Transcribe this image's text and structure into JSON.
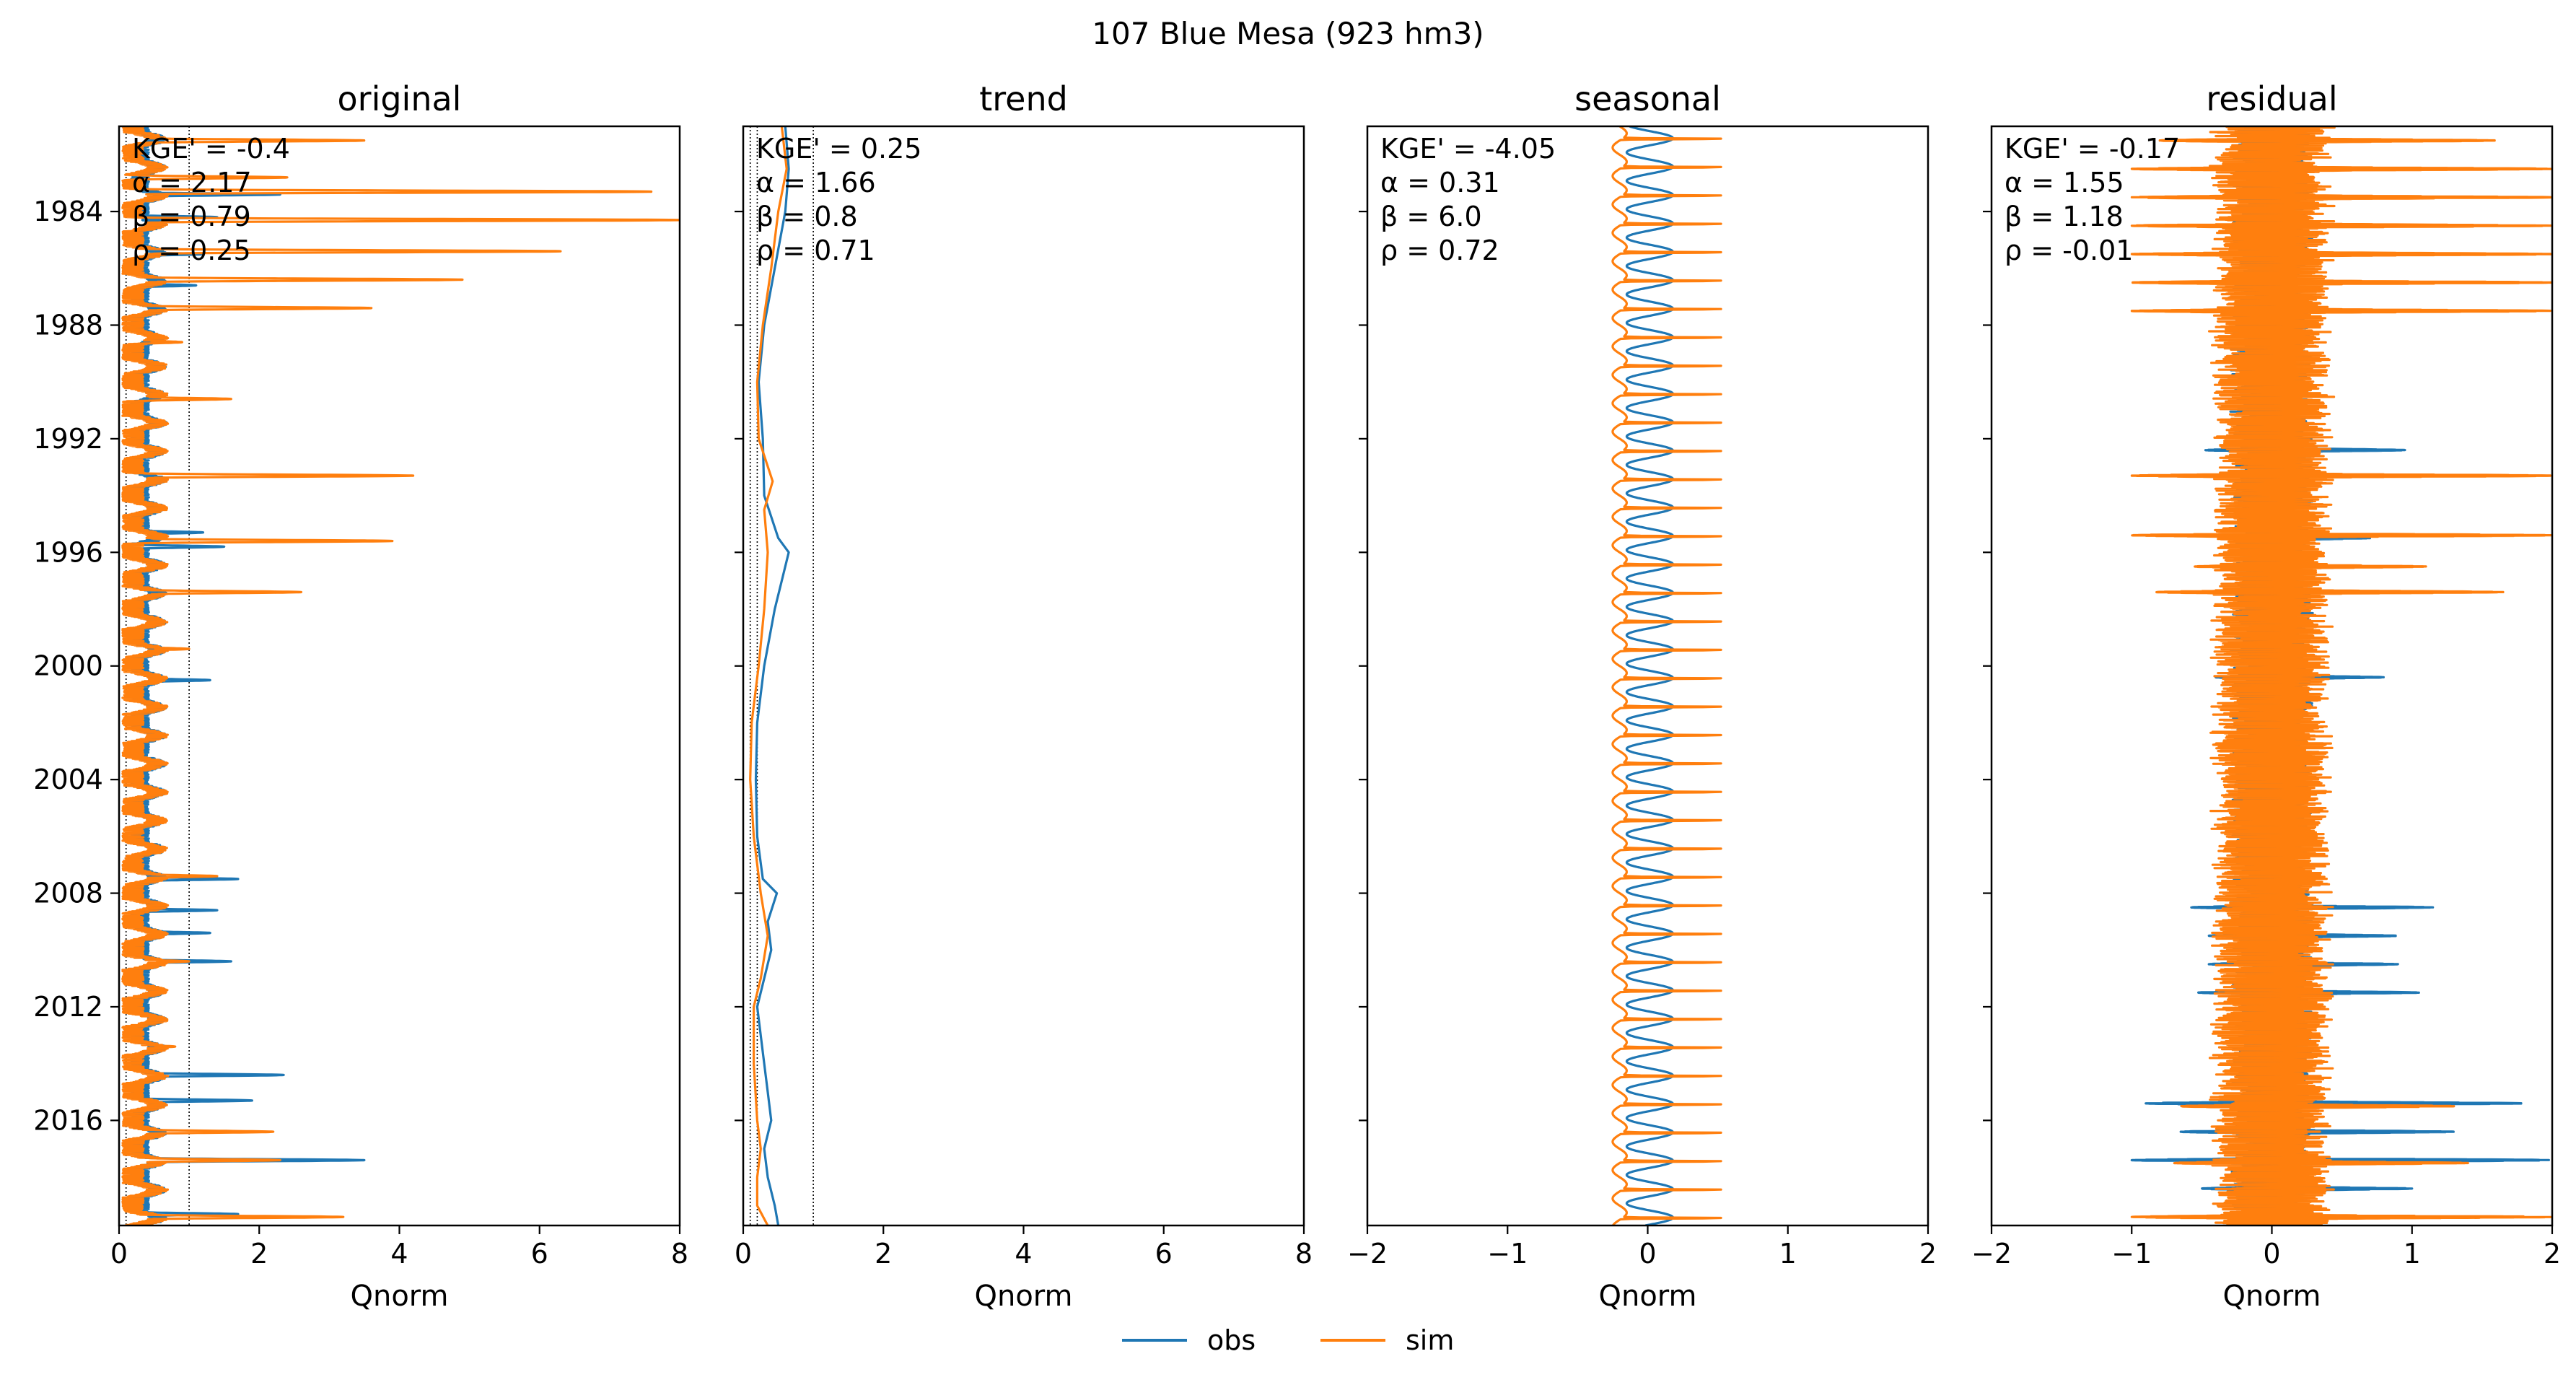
{
  "figure": {
    "suptitle": "107  Blue Mesa (923 hm3)",
    "colors": {
      "obs": "#1f77b4",
      "sim": "#ff7f0e"
    },
    "legend": {
      "placement": "bottom-center",
      "entries": [
        "obs",
        "sim"
      ]
    }
  },
  "chart_data": [
    {
      "type": "line",
      "title": "original",
      "xlabel": "Qnorm",
      "ylabel": "",
      "xlim": [
        0,
        8
      ],
      "xticks": [
        "0",
        "2",
        "4",
        "6",
        "8"
      ],
      "ylim": [
        1981,
        2019.7
      ],
      "yticks": [
        1984,
        1988,
        1992,
        1996,
        2000,
        2004,
        2008,
        2012,
        2016
      ],
      "ytick_labels": [
        "1984",
        "1988",
        "1992",
        "1996",
        "2000",
        "2004",
        "2008",
        "2012",
        "2016"
      ],
      "ref_lines_x": [
        0.1,
        1.0
      ],
      "stats": [
        "KGE' = -0.4",
        "α = 2.17",
        "β = 0.79",
        "ρ = 0.25"
      ],
      "series": [
        {
          "name": "obs",
          "base": 0.3,
          "amp": 0.25,
          "noise": 0.25,
          "peaks": [
            [
              1983.4,
              2.3
            ],
            [
              1984.2,
              1.4
            ],
            [
              1985.5,
              1.2
            ],
            [
              1986.6,
              1.1
            ],
            [
              1995.3,
              1.2
            ],
            [
              1995.8,
              1.5
            ],
            [
              2000.5,
              1.3
            ],
            [
              2007.5,
              1.7
            ],
            [
              2008.6,
              1.4
            ],
            [
              2009.4,
              1.3
            ],
            [
              2010.4,
              1.6
            ],
            [
              2014.4,
              2.35
            ],
            [
              2015.3,
              1.9
            ],
            [
              2017.4,
              3.5
            ],
            [
              2019.3,
              1.7
            ]
          ]
        },
        {
          "name": "sim",
          "base": 0.2,
          "amp": 0.35,
          "noise": 0.3,
          "peaks": [
            [
              1981.5,
              3.5
            ],
            [
              1982.8,
              2.4
            ],
            [
              1983.3,
              7.6
            ],
            [
              1984.3,
              8.0
            ],
            [
              1985.4,
              6.3
            ],
            [
              1986.4,
              4.9
            ],
            [
              1987.4,
              3.6
            ],
            [
              1988.6,
              0.9
            ],
            [
              1990.6,
              1.6
            ],
            [
              1993.3,
              4.2
            ],
            [
              1995.6,
              3.9
            ],
            [
              1997.4,
              2.6
            ],
            [
              1999.4,
              1.0
            ],
            [
              2007.4,
              1.4
            ],
            [
              2010.4,
              1.0
            ],
            [
              2013.4,
              0.8
            ],
            [
              2015.5,
              0.6
            ],
            [
              2016.4,
              2.2
            ],
            [
              2017.4,
              2.3
            ],
            [
              2019.4,
              3.2
            ]
          ]
        }
      ]
    },
    {
      "type": "line",
      "title": "trend",
      "xlabel": "Qnorm",
      "ylabel": "",
      "xlim": [
        0,
        8
      ],
      "xticks": [
        "0",
        "2",
        "4",
        "6",
        "8"
      ],
      "ylim": [
        1981,
        2019.7
      ],
      "yticks": [
        1984,
        1988,
        1992,
        1996,
        2000,
        2004,
        2008,
        2012,
        2016
      ],
      "ref_lines_x": [
        0.1,
        0.2,
        1.0
      ],
      "stats": [
        "KGE' = 0.25",
        "α = 1.66",
        "β = 0.8",
        "ρ = 0.71"
      ],
      "series": [
        {
          "name": "obs",
          "points": [
            [
              1981,
              0.6
            ],
            [
              1982.5,
              0.65
            ],
            [
              1984,
              0.6
            ],
            [
              1986,
              0.45
            ],
            [
              1988,
              0.3
            ],
            [
              1990,
              0.22
            ],
            [
              1992,
              0.28
            ],
            [
              1994,
              0.3
            ],
            [
              1995.5,
              0.5
            ],
            [
              1996,
              0.65
            ],
            [
              1997,
              0.55
            ],
            [
              1998,
              0.45
            ],
            [
              2000,
              0.3
            ],
            [
              2002,
              0.2
            ],
            [
              2004,
              0.18
            ],
            [
              2006,
              0.2
            ],
            [
              2007.5,
              0.28
            ],
            [
              2008,
              0.48
            ],
            [
              2009,
              0.35
            ],
            [
              2010,
              0.4
            ],
            [
              2011,
              0.3
            ],
            [
              2012,
              0.2
            ],
            [
              2014,
              0.3
            ],
            [
              2015,
              0.35
            ],
            [
              2016,
              0.4
            ],
            [
              2017,
              0.3
            ],
            [
              2018,
              0.35
            ],
            [
              2019,
              0.45
            ],
            [
              2019.7,
              0.5
            ]
          ]
        },
        {
          "name": "sim",
          "points": [
            [
              1981,
              0.55
            ],
            [
              1982.5,
              0.62
            ],
            [
              1984,
              0.5
            ],
            [
              1986,
              0.4
            ],
            [
              1988,
              0.28
            ],
            [
              1990,
              0.2
            ],
            [
              1992,
              0.22
            ],
            [
              1993.5,
              0.42
            ],
            [
              1994.5,
              0.3
            ],
            [
              1996,
              0.35
            ],
            [
              1998,
              0.3
            ],
            [
              2000,
              0.22
            ],
            [
              2002,
              0.12
            ],
            [
              2004,
              0.1
            ],
            [
              2006,
              0.15
            ],
            [
              2008,
              0.25
            ],
            [
              2009.5,
              0.35
            ],
            [
              2011,
              0.25
            ],
            [
              2012,
              0.15
            ],
            [
              2014,
              0.15
            ],
            [
              2016,
              0.2
            ],
            [
              2017,
              0.25
            ],
            [
              2018,
              0.2
            ],
            [
              2019,
              0.2
            ],
            [
              2019.7,
              0.35
            ]
          ]
        }
      ]
    },
    {
      "type": "line",
      "title": "seasonal",
      "xlabel": "Qnorm",
      "ylabel": "",
      "xlim": [
        -2,
        2
      ],
      "xticks": [
        "−2",
        "−1",
        "0",
        "1",
        "2"
      ],
      "ylim": [
        1981,
        2019.7
      ],
      "yticks": [
        1984,
        1988,
        1992,
        1996,
        2000,
        2004,
        2008,
        2012,
        2016
      ],
      "ref_lines_x": [],
      "stats": [
        "KGE' = -4.05",
        "α = 0.31",
        "β = 6.0",
        "ρ = 0.72"
      ],
      "series": [
        {
          "name": "obs",
          "min": -0.15,
          "max": 0.18,
          "peak_phase": 0.42
        },
        {
          "name": "sim",
          "min": -0.2,
          "max": 0.62,
          "peak_phase": 0.44
        }
      ]
    },
    {
      "type": "line",
      "title": "residual",
      "xlabel": "Qnorm",
      "ylabel": "",
      "xlim": [
        -2,
        2
      ],
      "xticks": [
        "−2",
        "−1",
        "0",
        "1",
        "2"
      ],
      "ylim": [
        1981,
        2019.7
      ],
      "yticks": [
        1984,
        1988,
        1992,
        1996,
        2000,
        2004,
        2008,
        2012,
        2016
      ],
      "ref_lines_x": [],
      "stats": [
        "KGE' = -0.17",
        "α = 1.55",
        "β = 1.18",
        "ρ = -0.01"
      ],
      "series": [
        {
          "name": "obs",
          "spread": 0.3,
          "peaks": [
            [
              1992.4,
              0.95
            ],
            [
              1995.5,
              0.7
            ],
            [
              2000.4,
              0.8
            ],
            [
              2008.5,
              1.15
            ],
            [
              2009.5,
              0.9
            ],
            [
              2010.5,
              0.9
            ],
            [
              2011.5,
              1.05
            ],
            [
              2015.4,
              1.8
            ],
            [
              2016.4,
              1.3
            ],
            [
              2017.4,
              2.0
            ],
            [
              2018.4,
              1.0
            ],
            [
              2019.4,
              1.2
            ]
          ]
        },
        {
          "name": "sim",
          "spread": 0.45,
          "peaks": [
            [
              1981.5,
              1.6
            ],
            [
              1982.5,
              2.0
            ],
            [
              1983.5,
              2.0
            ],
            [
              1984.5,
              2.0
            ],
            [
              1985.5,
              2.0
            ],
            [
              1986.5,
              2.0
            ],
            [
              1987.5,
              2.0
            ],
            [
              1993.3,
              2.0
            ],
            [
              1995.4,
              2.0
            ],
            [
              1996.5,
              1.1
            ],
            [
              1997.4,
              1.65
            ],
            [
              2015.5,
              1.3
            ],
            [
              2017.5,
              1.4
            ],
            [
              2019.4,
              2.0
            ]
          ]
        }
      ]
    }
  ]
}
